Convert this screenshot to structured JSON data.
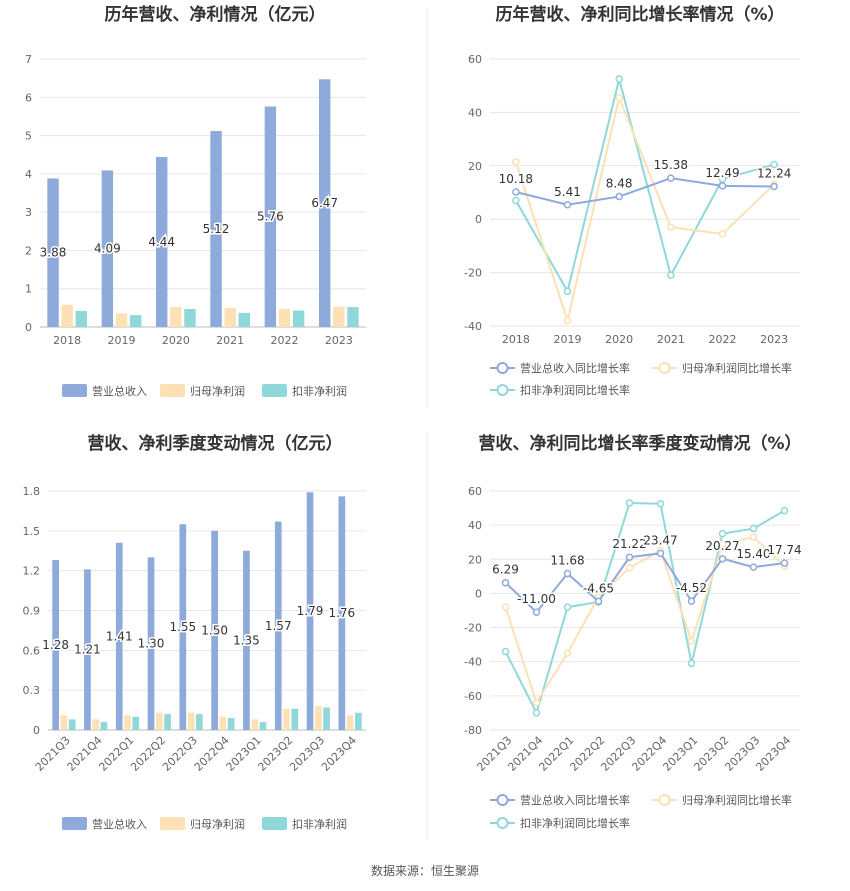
{
  "source": "数据来源：恒生聚源",
  "chart_data": [
    {
      "type": "bar",
      "title": "历年营收、净利情况（亿元）",
      "categories": [
        "2018",
        "2019",
        "2020",
        "2021",
        "2022",
        "2023"
      ],
      "yticks": [
        "0",
        "1",
        "2",
        "3",
        "4",
        "5",
        "6",
        "7"
      ],
      "ylim": [
        0,
        7
      ],
      "series": [
        {
          "name": "营业总收入",
          "color": "#8eaadb",
          "values": [
            3.88,
            4.09,
            4.44,
            5.12,
            5.76,
            6.47
          ],
          "labels": [
            "3.88",
            "4.09",
            "4.44",
            "5.12",
            "5.76",
            "6.47"
          ]
        },
        {
          "name": "归母净利润",
          "color": "#fde1b5",
          "values": [
            0.58,
            0.36,
            0.52,
            0.5,
            0.47,
            0.53
          ]
        },
        {
          "name": "扣非净利润",
          "color": "#8fd8d9",
          "values": [
            0.42,
            0.31,
            0.47,
            0.37,
            0.43,
            0.52
          ]
        }
      ]
    },
    {
      "type": "line",
      "title": "历年营收、净利同比增长率情况（%）",
      "categories": [
        "2018",
        "2019",
        "2020",
        "2021",
        "2022",
        "2023"
      ],
      "yticks": [
        "60",
        "40",
        "20",
        "0",
        "-20",
        "-40"
      ],
      "ylim": [
        -40,
        60
      ],
      "series": [
        {
          "name": "营业总收入同比增长率",
          "color": "#8eaadb",
          "values": [
            10.18,
            5.41,
            8.48,
            15.38,
            12.49,
            12.24
          ],
          "labels": [
            "10.18",
            "5.41",
            "8.48",
            "15.38",
            "12.49",
            "12.24"
          ]
        },
        {
          "name": "归母净利润同比增长率",
          "color": "#fde1b5",
          "values": [
            21.5,
            -38.0,
            45.5,
            -3.0,
            -5.5,
            13.0
          ]
        },
        {
          "name": "扣非净利润同比增长率",
          "color": "#8fd8d9",
          "values": [
            7.0,
            -27.0,
            52.5,
            -21.0,
            15.0,
            20.5
          ]
        }
      ]
    },
    {
      "type": "bar",
      "title": "营收、净利季度变动情况（亿元）",
      "categories": [
        "2021Q3",
        "2021Q4",
        "2022Q1",
        "2022Q2",
        "2022Q3",
        "2022Q4",
        "2023Q1",
        "2023Q2",
        "2023Q3",
        "2023Q4"
      ],
      "yticks": [
        "0",
        "0.3",
        "0.6",
        "0.9",
        "1.2",
        "1.5",
        "1.8"
      ],
      "ylim": [
        0,
        1.8
      ],
      "series": [
        {
          "name": "营业总收入",
          "color": "#8eaadb",
          "values": [
            1.28,
            1.21,
            1.41,
            1.3,
            1.55,
            1.5,
            1.35,
            1.57,
            1.79,
            1.76
          ],
          "labels": [
            "1.28",
            "1.21",
            "1.41",
            "1.30",
            "1.55",
            "1.50",
            "1.35",
            "1.57",
            "1.79",
            "1.76"
          ]
        },
        {
          "name": "归母净利润",
          "color": "#fde1b5",
          "values": [
            0.11,
            0.08,
            0.11,
            0.13,
            0.13,
            0.1,
            0.08,
            0.16,
            0.18,
            0.11
          ]
        },
        {
          "name": "扣非净利润",
          "color": "#8fd8d9",
          "values": [
            0.08,
            0.06,
            0.1,
            0.12,
            0.12,
            0.09,
            0.06,
            0.16,
            0.17,
            0.13
          ]
        }
      ]
    },
    {
      "type": "line",
      "title": "营收、净利同比增长率季度变动情况（%）",
      "categories": [
        "2021Q3",
        "2021Q4",
        "2022Q1",
        "2022Q2",
        "2022Q3",
        "2022Q4",
        "2023Q1",
        "2023Q2",
        "2023Q3",
        "2023Q4"
      ],
      "yticks": [
        "60",
        "40",
        "20",
        "0",
        "-20",
        "-40",
        "-60",
        "-80"
      ],
      "ylim": [
        -80,
        60
      ],
      "series": [
        {
          "name": "营业总收入同比增长率",
          "color": "#8eaadb",
          "values": [
            6.29,
            -11.0,
            11.68,
            -4.65,
            21.22,
            23.47,
            -4.52,
            20.27,
            15.4,
            17.74
          ],
          "labels": [
            "6.29",
            "-11.00",
            "11.68",
            "-4.65",
            "21.22",
            "23.47",
            "-4.52",
            "20.27",
            "15.40",
            "17.74"
          ]
        },
        {
          "name": "归母净利润同比增长率",
          "color": "#fde1b5",
          "values": [
            -8.0,
            -64.0,
            -35.0,
            -2.0,
            15.0,
            25.0,
            -28.0,
            29.0,
            33.0,
            16.0
          ]
        },
        {
          "name": "扣非净利润同比增长率",
          "color": "#8fd8d9",
          "values": [
            -34.0,
            -70.0,
            -8.0,
            -5.0,
            53.0,
            52.5,
            -41.0,
            35.0,
            38.0,
            48.5
          ]
        }
      ]
    }
  ]
}
